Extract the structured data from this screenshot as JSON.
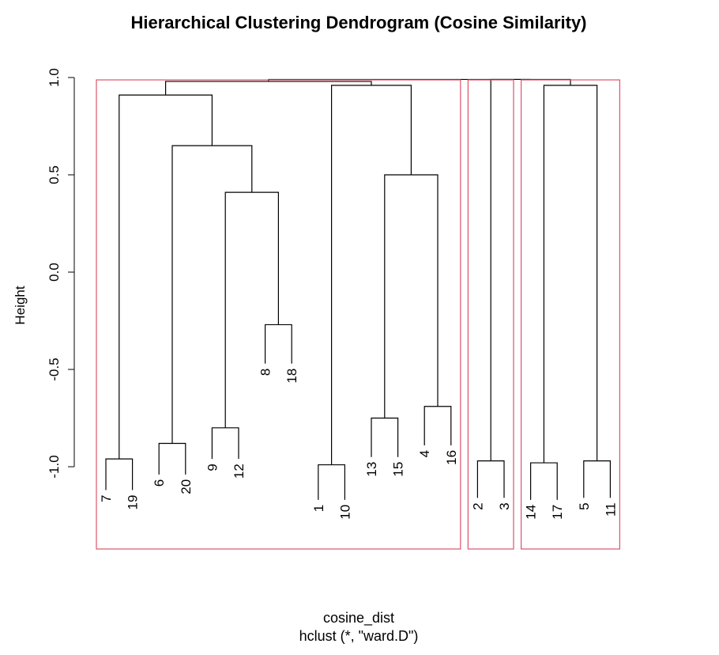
{
  "chart_data": {
    "type": "dendrogram",
    "title": "Hierarchical Clustering Dendrogram (Cosine Similarity)",
    "ylabel": "Height",
    "xlabel": "cosine_dist",
    "sublabel": "hclust (*, \"ward.D\")",
    "ylim": [
      -1.2,
      1.0
    ],
    "yticks": [
      "-1.0",
      "-0.5",
      "0.0",
      "0.5",
      "1.0"
    ],
    "ytick_values": [
      -1.0,
      -0.5,
      0.0,
      0.5,
      1.0
    ],
    "leaves": [
      "7",
      "19",
      "6",
      "20",
      "9",
      "12",
      "8",
      "18",
      "1",
      "10",
      "13",
      "15",
      "4",
      "16",
      "2",
      "3",
      "14",
      "17",
      "5",
      "11"
    ],
    "leaf_label_heights": [
      -1.12,
      -1.12,
      -1.04,
      -1.04,
      -0.96,
      -0.96,
      -0.47,
      -0.47,
      -1.17,
      -1.17,
      -0.95,
      -0.95,
      -0.89,
      -0.89,
      -1.16,
      -1.16,
      -1.17,
      -1.17,
      -1.16,
      -1.16
    ],
    "merges": [
      {
        "left": "leaf:7",
        "right": "leaf:19",
        "height": -0.96
      },
      {
        "left": "leaf:6",
        "right": "leaf:20",
        "height": -0.88
      },
      {
        "left": "leaf:9",
        "right": "leaf:12",
        "height": -0.8
      },
      {
        "left": "leaf:8",
        "right": "leaf:18",
        "height": -0.27
      },
      {
        "left": "merge:2",
        "right": "merge:3",
        "height": 0.41
      },
      {
        "left": "merge:1",
        "right": "merge:4",
        "height": 0.65
      },
      {
        "left": "merge:0",
        "right": "merge:5",
        "height": 0.91
      },
      {
        "left": "leaf:1",
        "right": "leaf:10",
        "height": -0.99
      },
      {
        "left": "leaf:13",
        "right": "leaf:15",
        "height": -0.75
      },
      {
        "left": "leaf:4",
        "right": "leaf:16",
        "height": -0.69
      },
      {
        "left": "merge:8",
        "right": "merge:9",
        "height": 0.5
      },
      {
        "left": "merge:7",
        "right": "merge:10",
        "height": 0.96
      },
      {
        "left": "merge:6",
        "right": "merge:11",
        "height": 0.98
      },
      {
        "left": "leaf:2",
        "right": "leaf:3",
        "height": -0.97
      },
      {
        "left": "leaf:14",
        "right": "leaf:17",
        "height": -0.98
      },
      {
        "left": "leaf:5",
        "right": "leaf:11",
        "height": -0.97
      },
      {
        "left": "merge:14",
        "right": "merge:15",
        "height": 0.96
      },
      {
        "left": "merge:13",
        "right": "merge:16",
        "height": 0.99
      },
      {
        "left": "merge:12",
        "right": "merge:17",
        "height": 0.99
      }
    ],
    "cluster_boxes": [
      {
        "first_leaf": 0,
        "last_leaf": 13
      },
      {
        "first_leaf": 14,
        "last_leaf": 15
      },
      {
        "first_leaf": 16,
        "last_leaf": 19
      }
    ],
    "box_color": "#df536b",
    "line_color": "#000000"
  }
}
